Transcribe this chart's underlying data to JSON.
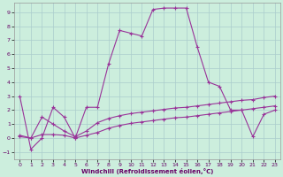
{
  "xlabel": "Windchill (Refroidissement éolien,°C)",
  "bg_color": "#cceedd",
  "grid_color": "#aacccc",
  "line_color": "#993399",
  "xlim": [
    -0.5,
    23.5
  ],
  "ylim": [
    -1.5,
    9.7
  ],
  "yticks": [
    -1,
    0,
    1,
    2,
    3,
    4,
    5,
    6,
    7,
    8,
    9
  ],
  "xticks": [
    0,
    1,
    2,
    3,
    4,
    5,
    6,
    7,
    8,
    9,
    10,
    11,
    12,
    13,
    14,
    15,
    16,
    17,
    18,
    19,
    20,
    21,
    22,
    23
  ],
  "line1_y": [
    3.0,
    -0.8,
    0.0,
    2.2,
    1.5,
    0.0,
    2.2,
    2.2,
    5.3,
    7.7,
    7.5,
    7.3,
    9.2,
    9.3,
    9.3,
    9.3,
    6.5,
    4.0,
    3.7,
    2.0,
    2.0,
    0.1,
    1.7,
    2.0
  ],
  "line2_y": [
    0.2,
    0.0,
    1.5,
    1.0,
    0.5,
    0.1,
    0.5,
    1.1,
    1.4,
    1.6,
    1.75,
    1.85,
    1.95,
    2.05,
    2.15,
    2.2,
    2.3,
    2.4,
    2.5,
    2.6,
    2.7,
    2.75,
    2.9,
    3.0
  ],
  "line3_y": [
    0.1,
    0.0,
    0.25,
    0.25,
    0.2,
    0.0,
    0.2,
    0.4,
    0.7,
    0.9,
    1.05,
    1.15,
    1.25,
    1.35,
    1.45,
    1.5,
    1.6,
    1.7,
    1.8,
    1.9,
    2.0,
    2.1,
    2.2,
    2.3
  ]
}
